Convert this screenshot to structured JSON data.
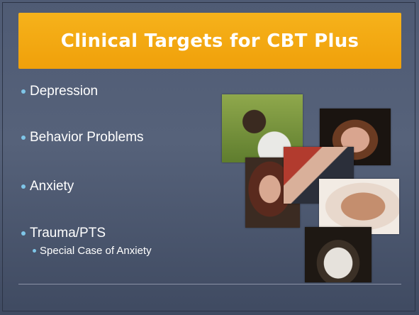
{
  "slide": {
    "title": "Clinical Targets for CBT Plus",
    "bullets": [
      {
        "text": "Depression"
      },
      {
        "text": "Behavior Problems"
      },
      {
        "text": "Anxiety"
      },
      {
        "text": "Trauma/PTS",
        "sub": [
          "Special Case of Anxiety"
        ]
      }
    ]
  }
}
